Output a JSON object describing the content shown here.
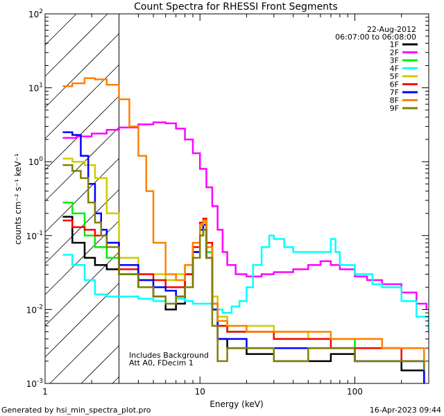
{
  "chart_data": {
    "type": "line",
    "title": "Count Spectra for RHESSI Front Segments",
    "xlabel": "Energy (keV)",
    "ylabel": "counts cm⁻² s⁻¹ keV⁻¹",
    "xscale": "log",
    "yscale": "log",
    "xlim": [
      1,
      300
    ],
    "ylim": [
      0.001,
      100
    ],
    "x_tick_labels": [
      {
        "value": 1,
        "label": "1"
      },
      {
        "value": 10,
        "label": "10"
      },
      {
        "value": 100,
        "label": "100"
      }
    ],
    "y_tick_labels": [
      {
        "value": 0.001,
        "base": "10",
        "exp": "-3"
      },
      {
        "value": 0.01,
        "base": "10",
        "exp": "-2"
      },
      {
        "value": 0.1,
        "base": "10",
        "exp": "-1"
      },
      {
        "value": 1,
        "base": "10",
        "exp": "0"
      },
      {
        "value": 10,
        "base": "10",
        "exp": "1"
      },
      {
        "value": 100,
        "base": "10",
        "exp": "2"
      }
    ],
    "shaded_region": {
      "from": 1,
      "to": 3,
      "style": "diagonal hatch"
    },
    "date": "22-Aug-2012",
    "time_range": "06:07:00 to 06:08:00",
    "annotations": [
      "Includes Background",
      "Att A0, FDecim 1"
    ],
    "legend_position": "top-right",
    "series": [
      {
        "name": "1F",
        "color": "#000000",
        "points": [
          [
            1.3,
            0.18
          ],
          [
            1.5,
            0.08
          ],
          [
            1.8,
            0.05
          ],
          [
            2.1,
            0.04
          ],
          [
            2.5,
            0.035
          ],
          [
            3.0,
            0.03
          ],
          [
            4,
            0.02
          ],
          [
            5,
            0.015
          ],
          [
            6,
            0.01
          ],
          [
            7,
            0.012
          ],
          [
            8,
            0.03
          ],
          [
            9,
            0.06
          ],
          [
            10,
            0.1
          ],
          [
            10.5,
            0.12
          ],
          [
            11,
            0.05
          ],
          [
            12,
            0.01
          ],
          [
            13,
            0.004
          ],
          [
            15,
            0.003
          ],
          [
            20,
            0.0025
          ],
          [
            30,
            0.002
          ],
          [
            50,
            0.002
          ],
          [
            70,
            0.0025
          ],
          [
            100,
            0.002
          ],
          [
            150,
            0.002
          ],
          [
            200,
            0.0015
          ],
          [
            280,
            0.001
          ]
        ]
      },
      {
        "name": "2F",
        "color": "#ff00ff",
        "points": [
          [
            1.3,
            2.1
          ],
          [
            1.6,
            2.2
          ],
          [
            2,
            2.4
          ],
          [
            2.5,
            2.7
          ],
          [
            3,
            2.9
          ],
          [
            4,
            3.2
          ],
          [
            5,
            3.4
          ],
          [
            6,
            3.3
          ],
          [
            7,
            2.8
          ],
          [
            8,
            2.0
          ],
          [
            9,
            1.3
          ],
          [
            10,
            0.8
          ],
          [
            11,
            0.45
          ],
          [
            12,
            0.25
          ],
          [
            13,
            0.12
          ],
          [
            14,
            0.06
          ],
          [
            15,
            0.04
          ],
          [
            17,
            0.03
          ],
          [
            20,
            0.028
          ],
          [
            25,
            0.03
          ],
          [
            30,
            0.032
          ],
          [
            40,
            0.035
          ],
          [
            50,
            0.04
          ],
          [
            60,
            0.045
          ],
          [
            70,
            0.04
          ],
          [
            80,
            0.035
          ],
          [
            100,
            0.028
          ],
          [
            120,
            0.025
          ],
          [
            150,
            0.022
          ],
          [
            200,
            0.017
          ],
          [
            250,
            0.012
          ],
          [
            290,
            0.01
          ]
        ]
      },
      {
        "name": "3F",
        "color": "#00ee00",
        "points": [
          [
            1.3,
            0.28
          ],
          [
            1.5,
            0.2
          ],
          [
            1.8,
            0.1
          ],
          [
            2.1,
            0.07
          ],
          [
            2.5,
            0.05
          ],
          [
            3,
            0.03
          ],
          [
            4,
            0.025
          ],
          [
            5,
            0.02
          ],
          [
            6,
            0.02
          ],
          [
            7,
            0.02
          ],
          [
            8,
            0.03
          ],
          [
            9,
            0.06
          ],
          [
            10,
            0.12
          ],
          [
            10.5,
            0.14
          ],
          [
            11,
            0.06
          ],
          [
            12,
            0.01
          ],
          [
            13,
            0.006
          ],
          [
            15,
            0.005
          ],
          [
            20,
            0.005
          ],
          [
            30,
            0.004
          ],
          [
            50,
            0.004
          ],
          [
            70,
            0.004
          ],
          [
            100,
            0.003
          ],
          [
            150,
            0.003
          ],
          [
            200,
            0.002
          ],
          [
            280,
            0.002
          ]
        ]
      },
      {
        "name": "4F",
        "color": "#00ffff",
        "points": [
          [
            1.3,
            0.055
          ],
          [
            1.5,
            0.04
          ],
          [
            1.8,
            0.025
          ],
          [
            2.1,
            0.016
          ],
          [
            2.5,
            0.015
          ],
          [
            3,
            0.015
          ],
          [
            4,
            0.014
          ],
          [
            5,
            0.013
          ],
          [
            6,
            0.012
          ],
          [
            7,
            0.014
          ],
          [
            8,
            0.013
          ],
          [
            9,
            0.012
          ],
          [
            10,
            0.012
          ],
          [
            12,
            0.01
          ],
          [
            14,
            0.009
          ],
          [
            16,
            0.011
          ],
          [
            18,
            0.013
          ],
          [
            20,
            0.02
          ],
          [
            22,
            0.04
          ],
          [
            25,
            0.07
          ],
          [
            28,
            0.1
          ],
          [
            30,
            0.09
          ],
          [
            35,
            0.07
          ],
          [
            40,
            0.06
          ],
          [
            50,
            0.06
          ],
          [
            60,
            0.06
          ],
          [
            70,
            0.09
          ],
          [
            75,
            0.06
          ],
          [
            80,
            0.04
          ],
          [
            100,
            0.03
          ],
          [
            130,
            0.022
          ],
          [
            150,
            0.02
          ],
          [
            200,
            0.013
          ],
          [
            250,
            0.008
          ],
          [
            300,
            0.005
          ]
        ]
      },
      {
        "name": "5F",
        "color": "#cccc00",
        "points": [
          [
            1.3,
            1.1
          ],
          [
            1.5,
            1.0
          ],
          [
            1.8,
            0.9
          ],
          [
            2.1,
            0.6
          ],
          [
            2.5,
            0.2
          ],
          [
            3,
            0.05
          ],
          [
            4,
            0.03
          ],
          [
            5,
            0.03
          ],
          [
            6,
            0.025
          ],
          [
            7,
            0.03
          ],
          [
            8,
            0.04
          ],
          [
            9,
            0.08
          ],
          [
            10,
            0.13
          ],
          [
            10.5,
            0.15
          ],
          [
            11,
            0.07
          ],
          [
            12,
            0.015
          ],
          [
            13,
            0.008
          ],
          [
            15,
            0.006
          ],
          [
            20,
            0.006
          ],
          [
            30,
            0.005
          ],
          [
            50,
            0.004
          ],
          [
            70,
            0.004
          ],
          [
            100,
            0.004
          ],
          [
            150,
            0.003
          ],
          [
            200,
            0.003
          ],
          [
            280,
            0.002
          ]
        ]
      },
      {
        "name": "6F",
        "color": "#ff0000",
        "points": [
          [
            1.3,
            0.16
          ],
          [
            1.5,
            0.13
          ],
          [
            1.8,
            0.12
          ],
          [
            2.1,
            0.1
          ],
          [
            2.5,
            0.08
          ],
          [
            3,
            0.035
          ],
          [
            4,
            0.03
          ],
          [
            5,
            0.025
          ],
          [
            6,
            0.02
          ],
          [
            7,
            0.02
          ],
          [
            8,
            0.03
          ],
          [
            9,
            0.07
          ],
          [
            10,
            0.15
          ],
          [
            10.5,
            0.17
          ],
          [
            11,
            0.08
          ],
          [
            12,
            0.012
          ],
          [
            13,
            0.006
          ],
          [
            15,
            0.005
          ],
          [
            20,
            0.005
          ],
          [
            30,
            0.004
          ],
          [
            50,
            0.004
          ],
          [
            70,
            0.003
          ],
          [
            100,
            0.003
          ],
          [
            150,
            0.003
          ],
          [
            200,
            0.002
          ],
          [
            280,
            0.002
          ]
        ]
      },
      {
        "name": "7F",
        "color": "#0000ff",
        "points": [
          [
            1.3,
            2.5
          ],
          [
            1.5,
            2.3
          ],
          [
            1.7,
            1.2
          ],
          [
            1.9,
            0.5
          ],
          [
            2.1,
            0.2
          ],
          [
            2.3,
            0.12
          ],
          [
            2.5,
            0.08
          ],
          [
            3,
            0.04
          ],
          [
            4,
            0.025
          ],
          [
            5,
            0.02
          ],
          [
            6,
            0.018
          ],
          [
            7,
            0.015
          ],
          [
            8,
            0.02
          ],
          [
            9,
            0.06
          ],
          [
            10,
            0.12
          ],
          [
            10.5,
            0.14
          ],
          [
            11,
            0.05
          ],
          [
            12,
            0.01
          ],
          [
            13,
            0.004
          ],
          [
            15,
            0.004
          ],
          [
            20,
            0.003
          ],
          [
            30,
            0.003
          ],
          [
            50,
            0.003
          ],
          [
            70,
            0.003
          ],
          [
            100,
            0.002
          ],
          [
            150,
            0.002
          ],
          [
            200,
            0.002
          ],
          [
            280,
            0.001
          ]
        ]
      },
      {
        "name": "8F",
        "color": "#ff8000",
        "points": [
          [
            1.3,
            10.5
          ],
          [
            1.5,
            11.5
          ],
          [
            1.8,
            13.5
          ],
          [
            2.1,
            13
          ],
          [
            2.5,
            11
          ],
          [
            3,
            7
          ],
          [
            3.5,
            3
          ],
          [
            4,
            1.2
          ],
          [
            4.5,
            0.4
          ],
          [
            5,
            0.08
          ],
          [
            6,
            0.03
          ],
          [
            7,
            0.025
          ],
          [
            8,
            0.04
          ],
          [
            9,
            0.08
          ],
          [
            10,
            0.14
          ],
          [
            10.5,
            0.16
          ],
          [
            11,
            0.07
          ],
          [
            12,
            0.012
          ],
          [
            13,
            0.007
          ],
          [
            15,
            0.006
          ],
          [
            20,
            0.005
          ],
          [
            30,
            0.005
          ],
          [
            50,
            0.005
          ],
          [
            70,
            0.004
          ],
          [
            100,
            0.004
          ],
          [
            150,
            0.003
          ],
          [
            200,
            0.003
          ],
          [
            280,
            0.002
          ]
        ]
      },
      {
        "name": "9F",
        "color": "#808000",
        "points": [
          [
            1.3,
            0.9
          ],
          [
            1.5,
            0.75
          ],
          [
            1.7,
            0.6
          ],
          [
            1.9,
            0.28
          ],
          [
            2.1,
            0.15
          ],
          [
            2.3,
            0.1
          ],
          [
            2.5,
            0.07
          ],
          [
            3,
            0.03
          ],
          [
            4,
            0.02
          ],
          [
            5,
            0.015
          ],
          [
            6,
            0.012
          ],
          [
            7,
            0.015
          ],
          [
            8,
            0.02
          ],
          [
            9,
            0.05
          ],
          [
            10,
            0.1
          ],
          [
            10.5,
            0.12
          ],
          [
            11,
            0.05
          ],
          [
            12,
            0.006
          ],
          [
            13,
            0.002
          ],
          [
            15,
            0.003
          ],
          [
            20,
            0.003
          ],
          [
            30,
            0.002
          ],
          [
            50,
            0.003
          ],
          [
            70,
            0.003
          ],
          [
            100,
            0.002
          ],
          [
            150,
            0.002
          ],
          [
            200,
            0.002
          ],
          [
            280,
            0.0015
          ]
        ]
      }
    ]
  },
  "footer": {
    "left": "Generated by hsi_min_spectra_plot.pro",
    "right": "16-Apr-2023 09:44"
  }
}
